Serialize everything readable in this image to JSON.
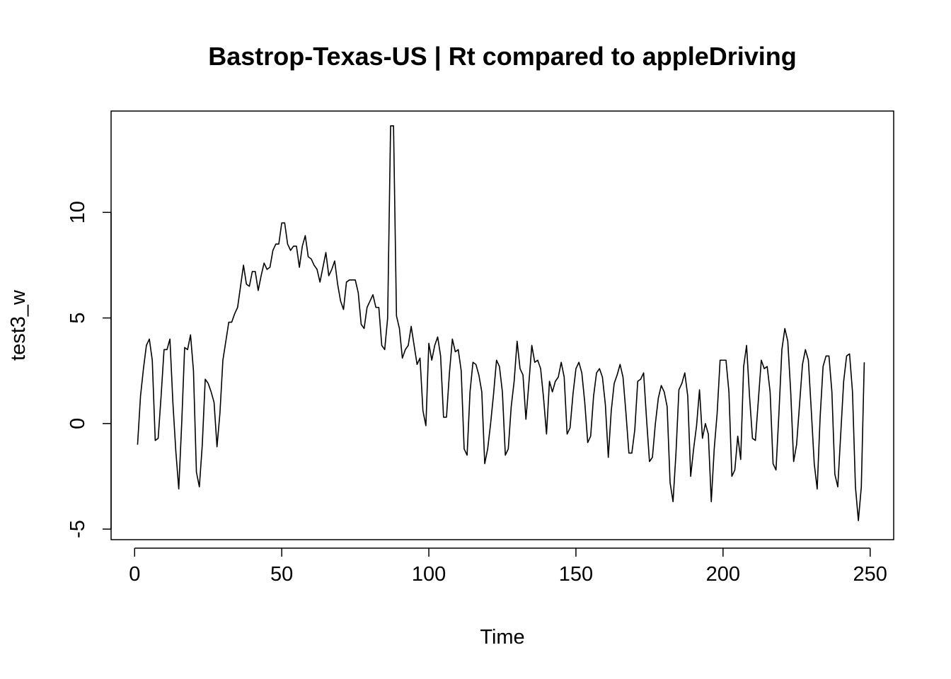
{
  "chart_data": {
    "type": "line",
    "title": "Bastrop-Texas-US | Rt compared to appleDriving",
    "xlabel": "Time",
    "ylabel": "test3_w",
    "xlim": [
      -8,
      258
    ],
    "ylim": [
      -5.5,
      14.8
    ],
    "x_ticks": [
      0,
      50,
      100,
      150,
      200,
      250
    ],
    "y_ticks": [
      -5,
      0,
      5,
      10
    ],
    "x_tick_labels": [
      "0",
      "50",
      "100",
      "150",
      "200",
      "250"
    ],
    "y_tick_labels": [
      "-5",
      "0",
      "5",
      "10"
    ],
    "grid": false,
    "series": [
      {
        "x_start": 1,
        "values": [
          -1.0,
          1.3,
          2.6,
          3.7,
          4.0,
          3.0,
          -0.8,
          -0.7,
          1.3,
          3.5,
          3.5,
          4.0,
          1.0,
          -1.3,
          -3.1,
          0.0,
          3.6,
          3.5,
          4.2,
          2.5,
          -2.3,
          -3.0,
          -1.0,
          2.1,
          1.9,
          1.5,
          1.0,
          -1.1,
          0.5,
          3.0,
          3.9,
          4.8,
          4.8,
          5.2,
          5.5,
          6.5,
          7.5,
          6.6,
          6.5,
          7.2,
          7.2,
          6.3,
          7.0,
          7.6,
          7.3,
          7.4,
          8.2,
          8.5,
          8.5,
          9.5,
          9.5,
          8.5,
          8.2,
          8.4,
          8.4,
          7.4,
          8.4,
          8.9,
          7.9,
          7.8,
          7.5,
          7.3,
          6.7,
          7.4,
          8.1,
          7.0,
          7.3,
          7.7,
          6.6,
          5.8,
          5.4,
          6.7,
          6.8,
          6.8,
          6.8,
          6.2,
          4.7,
          4.5,
          5.5,
          5.8,
          6.1,
          5.5,
          5.5,
          3.7,
          3.5,
          5.0,
          14.1,
          14.1,
          5.1,
          4.5,
          3.1,
          3.5,
          3.7,
          4.6,
          3.7,
          2.8,
          3.1,
          0.6,
          -0.1,
          3.8,
          3.0,
          3.7,
          4.1,
          3.2,
          0.3,
          0.3,
          2.4,
          4.0,
          3.4,
          3.5,
          2.5,
          -1.2,
          -1.5,
          1.5,
          2.9,
          2.8,
          2.3,
          1.5,
          -1.9,
          -1.2,
          0.0,
          1.4,
          3.0,
          2.7,
          1.5,
          -1.5,
          -1.2,
          0.8,
          2.0,
          3.9,
          2.6,
          2.3,
          0.2,
          1.9,
          3.7,
          2.9,
          3.0,
          2.6,
          1.2,
          -0.5,
          2.0,
          1.5,
          2.0,
          2.2,
          2.9,
          2.2,
          -0.5,
          -0.2,
          1.4,
          2.6,
          2.9,
          2.4,
          1.0,
          -0.9,
          -0.6,
          1.3,
          2.4,
          2.6,
          2.2,
          0.9,
          -1.6,
          0.6,
          1.9,
          2.3,
          2.8,
          2.2,
          0.5,
          -1.4,
          -1.4,
          -0.3,
          2.0,
          2.1,
          2.4,
          0.2,
          -1.8,
          -1.6,
          0.0,
          1.2,
          1.8,
          1.5,
          0.8,
          -2.8,
          -3.7,
          -1.4,
          1.6,
          1.9,
          2.4,
          1.3,
          -2.5,
          -1.2,
          -0.1,
          1.6,
          -0.7,
          0.0,
          -0.5,
          -3.7,
          -1.2,
          0.5,
          3.0,
          3.0,
          3.0,
          1.5,
          -2.5,
          -2.2,
          -0.6,
          -1.7,
          2.7,
          3.7,
          1.3,
          -0.7,
          -0.8,
          1.1,
          3.0,
          2.6,
          2.7,
          1.5,
          -1.9,
          -2.2,
          0.5,
          3.5,
          4.5,
          3.9,
          1.5,
          -1.8,
          -1.0,
          0.9,
          2.8,
          3.5,
          3.0,
          0.6,
          -1.9,
          -3.1,
          0.3,
          2.7,
          3.2,
          3.2,
          1.5,
          -2.4,
          -3.0,
          -0.5,
          2.0,
          3.2,
          3.3,
          1.5,
          -3.0,
          -4.6,
          -3.0,
          2.9
        ]
      }
    ]
  }
}
